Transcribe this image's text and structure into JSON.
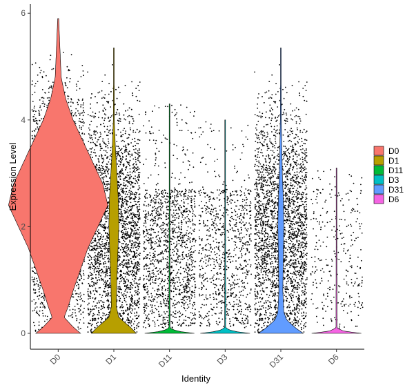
{
  "chart_data": {
    "type": "violin",
    "xlabel": "Identity",
    "ylabel": "Expression Level",
    "ylim": [
      -0.45,
      6.2
    ],
    "yticks": [
      0,
      2,
      4,
      6
    ],
    "grid": false,
    "legend_position": "right",
    "categories": [
      "D0",
      "D1",
      "D11",
      "D3",
      "D31",
      "D6"
    ],
    "series": [
      {
        "name": "D0",
        "color": "#F8766D",
        "max": 5.9,
        "cells": 3200,
        "points_top": 5.4,
        "profile": [
          [
            0,
            0.45
          ],
          [
            0.12,
            0.3
          ],
          [
            0.3,
            0.12
          ],
          [
            0.5,
            0.2
          ],
          [
            0.8,
            0.3
          ],
          [
            1.2,
            0.45
          ],
          [
            1.6,
            0.6
          ],
          [
            2.0,
            0.8
          ],
          [
            2.4,
            1.0
          ],
          [
            2.8,
            0.9
          ],
          [
            3.2,
            0.7
          ],
          [
            3.6,
            0.5
          ],
          [
            4.0,
            0.3
          ],
          [
            4.4,
            0.15
          ],
          [
            4.8,
            0.06
          ],
          [
            5.9,
            0.01
          ]
        ]
      },
      {
        "name": "D1",
        "color": "#B79F00",
        "max": 5.35,
        "cells": 3600,
        "points_top": 5.3,
        "profile": [
          [
            0,
            0.45
          ],
          [
            0.1,
            0.35
          ],
          [
            0.3,
            0.1
          ],
          [
            0.5,
            0.05
          ],
          [
            1.0,
            0.06
          ],
          [
            1.5,
            0.08
          ],
          [
            2.0,
            0.1
          ],
          [
            2.5,
            0.09
          ],
          [
            3.0,
            0.06
          ],
          [
            3.5,
            0.03
          ],
          [
            4.0,
            0.01
          ],
          [
            5.35,
            0.005
          ]
        ]
      },
      {
        "name": "D11",
        "color": "#00BA38",
        "max": 4.3,
        "cells": 1400,
        "points_top": 4.3,
        "profile": [
          [
            0,
            0.5
          ],
          [
            0.04,
            0.15
          ],
          [
            0.1,
            0.01
          ],
          [
            4.3,
            0.004
          ]
        ]
      },
      {
        "name": "D3",
        "color": "#00BFC4",
        "max": 4.0,
        "cells": 900,
        "points_top": 4.0,
        "profile": [
          [
            0,
            0.5
          ],
          [
            0.04,
            0.15
          ],
          [
            0.1,
            0.01
          ],
          [
            4.0,
            0.004
          ]
        ]
      },
      {
        "name": "D31",
        "color": "#619CFF",
        "max": 5.35,
        "cells": 3000,
        "points_top": 5.35,
        "profile": [
          [
            0,
            0.45
          ],
          [
            0.1,
            0.3
          ],
          [
            0.25,
            0.12
          ],
          [
            0.4,
            0.06
          ],
          [
            0.8,
            0.04
          ],
          [
            1.5,
            0.05
          ],
          [
            2.0,
            0.06
          ],
          [
            2.5,
            0.05
          ],
          [
            3.0,
            0.03
          ],
          [
            3.5,
            0.02
          ],
          [
            4.0,
            0.01
          ],
          [
            5.35,
            0.005
          ]
        ]
      },
      {
        "name": "D6",
        "color": "#F564E3",
        "max": 3.1,
        "cells": 300,
        "points_top": 3.1,
        "profile": [
          [
            0,
            0.5
          ],
          [
            0.04,
            0.15
          ],
          [
            0.1,
            0.01
          ],
          [
            3.1,
            0.004
          ]
        ]
      }
    ]
  }
}
